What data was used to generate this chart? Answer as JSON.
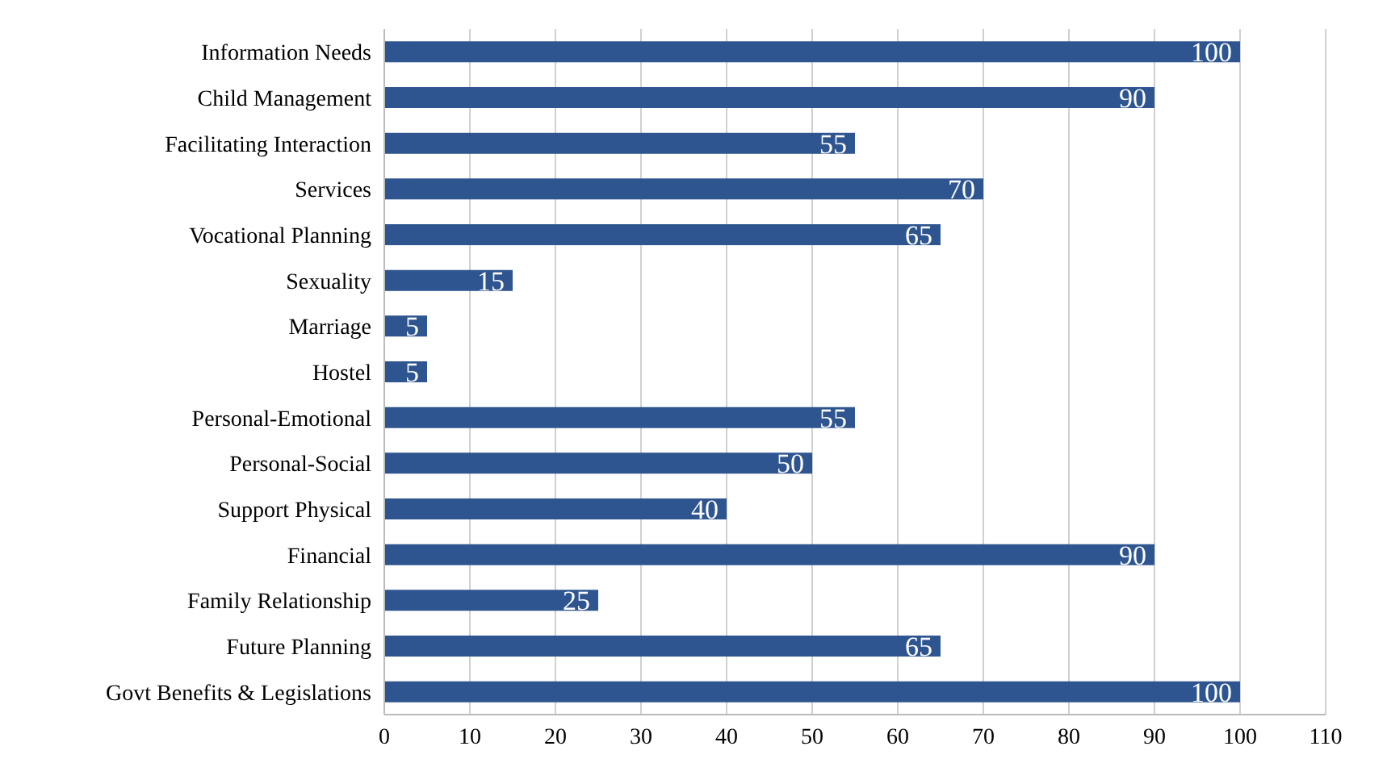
{
  "chart_data": {
    "type": "bar",
    "orientation": "horizontal",
    "categories": [
      "Information Needs",
      "Child Management",
      "Facilitating Interaction",
      "Services",
      "Vocational Planning",
      "Sexuality",
      "Marriage",
      "Hostel",
      "Personal-Emotional",
      "Personal-Social",
      "Support Physical",
      "Financial",
      "Family Relationship",
      "Future Planning",
      "Govt Benefits & Legislations"
    ],
    "values": [
      100,
      90,
      55,
      70,
      65,
      15,
      5,
      5,
      55,
      50,
      40,
      90,
      25,
      65,
      100
    ],
    "color": "#2e5590",
    "xlim": [
      0,
      110
    ],
    "xticks": [
      0,
      10,
      20,
      30,
      40,
      50,
      60,
      70,
      80,
      90,
      100,
      110
    ],
    "grid": "x",
    "data_labels": true
  }
}
